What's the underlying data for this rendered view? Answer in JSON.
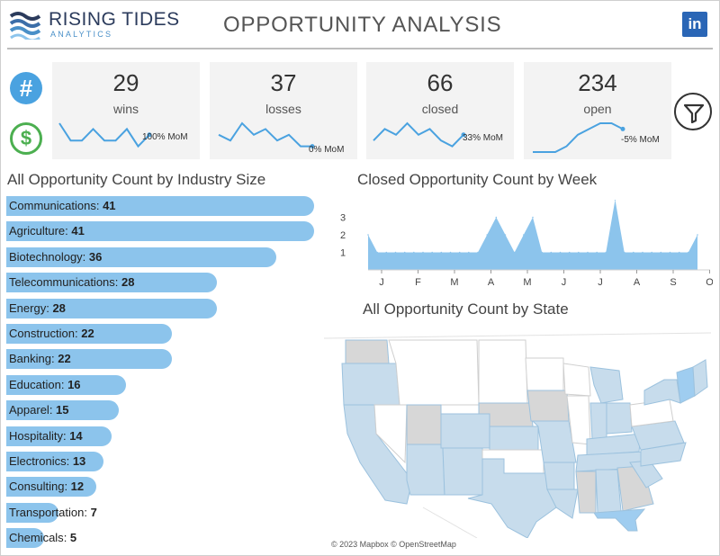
{
  "header": {
    "brand_name": "RISING TIDES",
    "brand_sub": "ANALYTICS",
    "title": "OPPORTUNITY ANALYSIS",
    "linkedin_label": "in"
  },
  "side_icons": {
    "count_glyph": "#",
    "dollar_glyph": "$"
  },
  "kpis": [
    {
      "value": "29",
      "label": "wins",
      "mom": "100% MoM",
      "trend": [
        6,
        3,
        3,
        5,
        3,
        3,
        5,
        2,
        4
      ]
    },
    {
      "value": "37",
      "label": "losses",
      "mom": "0% MoM",
      "trend": [
        4,
        3,
        6,
        4,
        5,
        3,
        4,
        2,
        2
      ]
    },
    {
      "value": "66",
      "label": "closed",
      "mom": "33% MoM",
      "trend": [
        3,
        5,
        4,
        6,
        4,
        5,
        3,
        2,
        4
      ]
    },
    {
      "value": "234",
      "label": "open",
      "mom": "-5% MoM",
      "trend": [
        1,
        1,
        1,
        2,
        4,
        5,
        6,
        6,
        5
      ]
    }
  ],
  "industry": {
    "title": "All Opportunity Count by Industry Size",
    "items": [
      {
        "name": "Communications",
        "value": 41
      },
      {
        "name": "Agriculture",
        "value": 41
      },
      {
        "name": "Biotechnology",
        "value": 36
      },
      {
        "name": "Telecommunications",
        "value": 28
      },
      {
        "name": "Energy",
        "value": 28
      },
      {
        "name": "Construction",
        "value": 22
      },
      {
        "name": "Banking",
        "value": 22
      },
      {
        "name": "Education",
        "value": 16
      },
      {
        "name": "Apparel",
        "value": 15
      },
      {
        "name": "Hospitality",
        "value": 14
      },
      {
        "name": "Electronics",
        "value": 13
      },
      {
        "name": "Consulting",
        "value": 12
      },
      {
        "name": "Transportation",
        "value": 7
      },
      {
        "name": "Chemicals",
        "value": 5
      }
    ]
  },
  "weekly": {
    "title": "Closed Opportunity Count by Week",
    "y_ticks": [
      "3",
      "2",
      "1"
    ],
    "x_labels": [
      "J",
      "F",
      "M",
      "A",
      "M",
      "J",
      "J",
      "A",
      "S",
      "O"
    ],
    "values": [
      2,
      1,
      1,
      1,
      1,
      1,
      1,
      1,
      1,
      1,
      1,
      1,
      1,
      2,
      3,
      2,
      1,
      2,
      3,
      1,
      1,
      1,
      1,
      1,
      1,
      1,
      1,
      4,
      1,
      1,
      1,
      1,
      1,
      1,
      1,
      1,
      2
    ]
  },
  "map": {
    "title": "All Opportunity Count by State",
    "credit": "© 2023 Mapbox © OpenStreetMap",
    "colors": {
      "highlight": "#c7dcec",
      "gray": "#d7d7d7",
      "strong": "#9fcdf0",
      "border": "#9cc2de"
    }
  },
  "colors": {
    "bar": "#8cc4ec",
    "accent": "#4aa2e0",
    "money": "#4caf50",
    "linkedin": "#2a66b6"
  }
}
